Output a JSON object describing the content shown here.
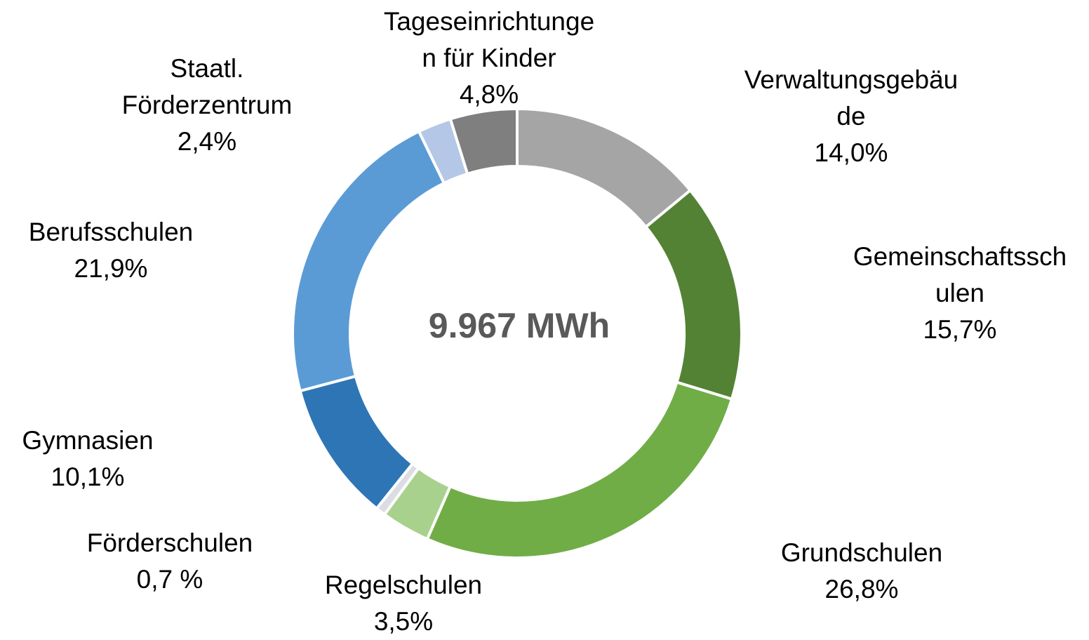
{
  "chart_data": {
    "type": "donut",
    "center_label": "9.967 MWh",
    "categories": [
      "Verwaltungsgebäu\nde",
      "Gemeinschaftssch\nulen",
      "Grundschulen",
      "Regelschulen",
      "Förderschulen",
      "Gymnasien",
      "Berufsschulen",
      "Staatl.\nFörderzentrum",
      "Tageseinrichtunge\nn für Kinder"
    ],
    "values": [
      14.0,
      15.7,
      26.8,
      3.5,
      0.7,
      10.1,
      21.9,
      2.4,
      4.8
    ],
    "value_labels": [
      "14,0%",
      "15,7%",
      "26,8%",
      "3,5%",
      "0,7 %",
      "10,1%",
      "21,9%",
      "2,4%",
      "4,8%"
    ],
    "colors": [
      "#a5a5a5",
      "#548235",
      "#70ad47",
      "#a9d18e",
      "#dcdce4",
      "#2e75b6",
      "#5b9bd5",
      "#b4c7e7",
      "#7f7f7f"
    ]
  }
}
